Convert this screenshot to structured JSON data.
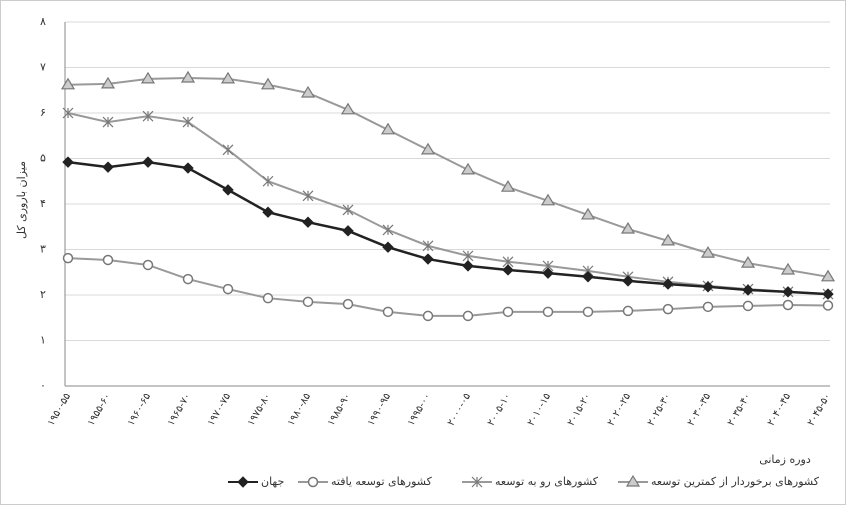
{
  "chart_data": {
    "type": "line",
    "x_axis_label": "دوره زمانی",
    "y_axis_label": "میزان باروری کل",
    "categories": [
      "۱۹۵۰-۵۵",
      "۱۹۵۵-۶۰",
      "۱۹۶۰-۶۵",
      "۱۹۶۵-۷۰",
      "۱۹۷۰-۷۵",
      "۱۹۷۵-۸۰",
      "۱۹۸۰-۸۵",
      "۱۹۸۵-۹۰",
      "۱۹۹۰-۹۵",
      "۱۹۹۵-۰۰",
      "۲۰۰۰-۰۵",
      "۲۰۰۵-۱۰",
      "۲۰۱۰-۱۵",
      "۲۰۱۵-۲۰",
      "۲۰۲۰-۲۵",
      "۲۰۲۵-۳۰",
      "۲۰۳۰-۳۵",
      "۲۰۳۵-۴۰",
      "۲۰۴۰-۴۵",
      "۲۰۴۵-۵۰"
    ],
    "series": [
      {
        "name": "جهان",
        "color": "#222222",
        "marker": "diamond",
        "values": [
          4.92,
          4.81,
          4.92,
          4.79,
          4.31,
          3.82,
          3.6,
          3.41,
          3.05,
          2.79,
          2.64,
          2.55,
          2.48,
          2.4,
          2.31,
          2.24,
          2.18,
          2.11,
          2.07,
          2.02
        ]
      },
      {
        "name": "کشورهای توسعه یافته",
        "color": "#999999",
        "marker": "circle",
        "values": [
          2.81,
          2.77,
          2.66,
          2.35,
          2.13,
          1.93,
          1.85,
          1.8,
          1.63,
          1.54,
          1.54,
          1.63,
          1.63,
          1.63,
          1.65,
          1.69,
          1.74,
          1.76,
          1.78,
          1.77
        ]
      },
      {
        "name": "کشورهای رو به توسعه",
        "color": "#999999",
        "marker": "star",
        "values": [
          6.0,
          5.8,
          5.93,
          5.8,
          5.19,
          4.5,
          4.18,
          3.87,
          3.43,
          3.08,
          2.86,
          2.73,
          2.64,
          2.53,
          2.4,
          2.29,
          2.2,
          2.13,
          2.07,
          2.02
        ]
      },
      {
        "name": "کشورهای برخوردار از کمترین توسعه",
        "color": "#999999",
        "marker": "triangle",
        "values": [
          6.62,
          6.64,
          6.75,
          6.77,
          6.75,
          6.62,
          6.44,
          6.07,
          5.63,
          5.19,
          4.75,
          4.37,
          4.07,
          3.76,
          3.45,
          3.19,
          2.92,
          2.7,
          2.55,
          2.4
        ]
      }
    ],
    "ylim": [
      0,
      8
    ],
    "yticks": [
      {
        "value": 0,
        "label": "۰"
      },
      {
        "value": 1,
        "label": "۱"
      },
      {
        "value": 2,
        "label": "۲"
      },
      {
        "value": 3,
        "label": "۳"
      },
      {
        "value": 4,
        "label": "۴"
      },
      {
        "value": 5,
        "label": "۵"
      },
      {
        "value": 6,
        "label": "۶"
      },
      {
        "value": 7,
        "label": "۷"
      },
      {
        "value": 8,
        "label": "۸"
      }
    ],
    "grid": true
  }
}
